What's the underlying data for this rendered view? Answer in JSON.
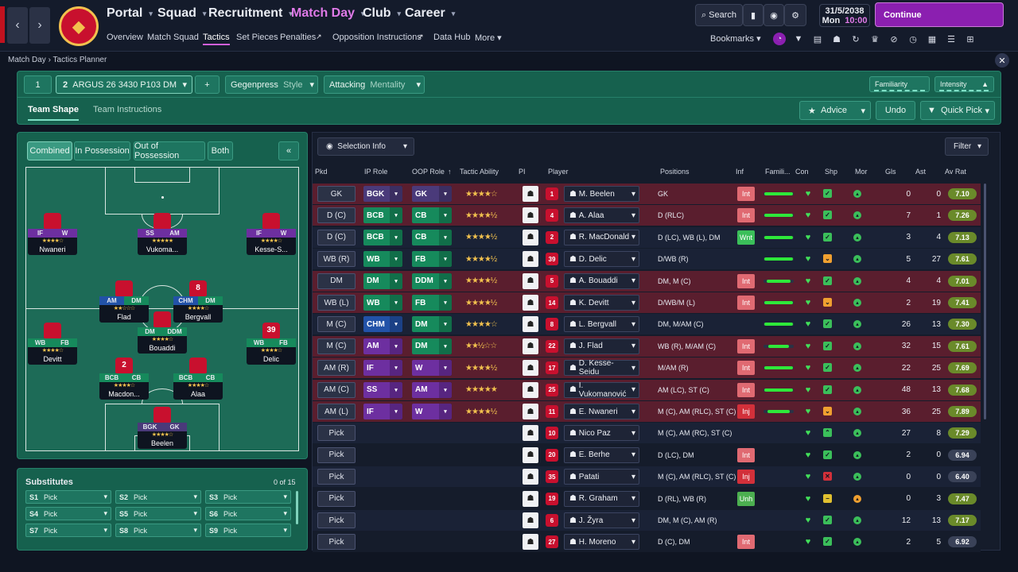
{
  "topbar": {
    "menus": [
      "Portal",
      "Squad",
      "Recruitment",
      "Match Day",
      "Club",
      "Career"
    ],
    "submenus": [
      "Overview",
      "Match Squad",
      "Tactics",
      "Set Pieces",
      "Penalties",
      "Opposition Instructions",
      "Data Hub",
      "More"
    ],
    "search": "Search",
    "date": "31/5/2038",
    "day": "Mon",
    "time": "10:00",
    "continue": "Continue",
    "bookmarks": "Bookmarks"
  },
  "breadcrumb": [
    "Match Day",
    "Tactics Planner"
  ],
  "tactics": {
    "slot1": "1",
    "slot2": "2",
    "tactic_name": "ARGUS 26 3430 P103 DM",
    "add": "+",
    "style_value": "Gegenpress",
    "style_label": "Style",
    "mentality_value": "Attacking",
    "mentality_label": "Mentality",
    "familiarity": "Familiarity",
    "intensity": "Intensity",
    "tabs": [
      "Team Shape",
      "Team Instructions"
    ],
    "advice": "Advice",
    "undo": "Undo",
    "quickpick": "Quick Pick"
  },
  "phases": [
    "Combined",
    "In Possession",
    "Out of Possession",
    "Both"
  ],
  "pitch_players": [
    {
      "r1": "IF",
      "r2": "W",
      "stars": "★★★★☆",
      "name": "Nwaneri",
      "num": ""
    },
    {
      "r1": "SS",
      "r2": "AM",
      "stars": "★★★★★",
      "name": "Vukoma...",
      "num": ""
    },
    {
      "r1": "IF",
      "r2": "W",
      "stars": "★★★★☆",
      "name": "Kesse-S...",
      "num": ""
    },
    {
      "r1": "AM",
      "r2": "DM",
      "stars": "★★☆☆☆",
      "name": "Flad",
      "num": ""
    },
    {
      "r1": "CHM",
      "r2": "DM",
      "stars": "★★★★☆",
      "name": "Bergvall",
      "num": "8"
    },
    {
      "r1": "WB",
      "r2": "FB",
      "stars": "★★★★☆",
      "name": "Devitt",
      "num": ""
    },
    {
      "r1": "DM",
      "r2": "DDM",
      "stars": "★★★★☆",
      "name": "Bouaddi",
      "num": ""
    },
    {
      "r1": "WB",
      "r2": "FB",
      "stars": "★★★★☆",
      "name": "Delic",
      "num": "39"
    },
    {
      "r1": "BCB",
      "r2": "CB",
      "stars": "★★★★☆",
      "name": "Macdon...",
      "num": "2"
    },
    {
      "r1": "BCB",
      "r2": "CB",
      "stars": "★★★★☆",
      "name": "Alaa",
      "num": ""
    },
    {
      "r1": "BGK",
      "r2": "GK",
      "stars": "★★★★☆",
      "name": "Beelen",
      "num": ""
    }
  ],
  "subs": {
    "title": "Substitutes",
    "count": "0 of 15",
    "slots": [
      [
        "S1",
        "Pick"
      ],
      [
        "S2",
        "Pick"
      ],
      [
        "S3",
        "Pick"
      ],
      [
        "S4",
        "Pick"
      ],
      [
        "S5",
        "Pick"
      ],
      [
        "S6",
        "Pick"
      ],
      [
        "S7",
        "Pick"
      ],
      [
        "S8",
        "Pick"
      ],
      [
        "S9",
        "Pick"
      ]
    ]
  },
  "table": {
    "selection_info": "Selection Info",
    "filter": "Filter",
    "headers": [
      "Pkd",
      "IP Role",
      "OOP Role",
      "Tactic Ability",
      "PI",
      "Player",
      "Positions",
      "Inf",
      "Famili...",
      "Con",
      "Shp",
      "Mor",
      "Gls",
      "Ast",
      "Av Rat"
    ],
    "rows": [
      {
        "pos": "GK",
        "ip": "BGK",
        "oop": "GK",
        "stars": "★★★★☆",
        "num": "1",
        "name": "M. Beelen",
        "positions": "GK",
        "inf": "Int",
        "fam": 0.95,
        "gls": "0",
        "ast": "0",
        "rat": "7.10"
      },
      {
        "pos": "D (C)",
        "ip": "BCB",
        "oop": "CB",
        "stars": "★★★★½",
        "num": "4",
        "name": "A. Alaa",
        "positions": "D (RLC)",
        "inf": "Int",
        "fam": 0.95,
        "gls": "7",
        "ast": "1",
        "rat": "7.26"
      },
      {
        "pos": "D (C)",
        "ip": "BCB",
        "oop": "CB",
        "stars": "★★★★½",
        "num": "2",
        "name": "R. MacDonald",
        "positions": "D (LC), WB (L), DM",
        "inf": "Wnt",
        "fam": 0.95,
        "gls": "3",
        "ast": "4",
        "rat": "7.13"
      },
      {
        "pos": "WB (R)",
        "ip": "WB",
        "oop": "FB",
        "stars": "★★★★½",
        "num": "39",
        "name": "D. Delic",
        "positions": "D/WB (R)",
        "inf": "",
        "fam": 0.95,
        "gls": "5",
        "ast": "27",
        "rat": "7.61"
      },
      {
        "pos": "DM",
        "ip": "DM",
        "oop": "DDM",
        "stars": "★★★★½",
        "num": "5",
        "name": "A. Bouaddi",
        "positions": "DM, M (C)",
        "inf": "Int",
        "fam": 0.8,
        "gls": "4",
        "ast": "4",
        "rat": "7.01"
      },
      {
        "pos": "WB (L)",
        "ip": "WB",
        "oop": "FB",
        "stars": "★★★★½",
        "num": "14",
        "name": "K. Devitt",
        "positions": "D/WB/M (L)",
        "inf": "Int",
        "fam": 0.95,
        "gls": "2",
        "ast": "19",
        "rat": "7.41"
      },
      {
        "pos": "M (C)",
        "ip": "CHM",
        "oop": "DM",
        "stars": "★★★★☆",
        "num": "8",
        "name": "L. Bergvall",
        "positions": "DM, M/AM (C)",
        "inf": "",
        "fam": 0.95,
        "gls": "26",
        "ast": "13",
        "rat": "7.30"
      },
      {
        "pos": "M (C)",
        "ip": "AM",
        "oop": "DM",
        "stars": "★★½☆☆",
        "num": "22",
        "name": "J. Flad",
        "positions": "WB (R), M/AM (C)",
        "inf": "Int",
        "fam": 0.7,
        "gls": "32",
        "ast": "15",
        "rat": "7.61"
      },
      {
        "pos": "AM (R)",
        "ip": "IF",
        "oop": "W",
        "stars": "★★★★½",
        "num": "17",
        "name": "D. Kesse-Seidu",
        "positions": "M/AM (R)",
        "inf": "Int",
        "fam": 0.95,
        "gls": "22",
        "ast": "25",
        "rat": "7.69"
      },
      {
        "pos": "AM (C)",
        "ip": "SS",
        "oop": "AM",
        "stars": "★★★★★",
        "num": "25",
        "name": "I. Vukomanović",
        "positions": "AM (LC), ST (C)",
        "inf": "Int",
        "fam": 0.95,
        "gls": "48",
        "ast": "13",
        "rat": "7.68"
      },
      {
        "pos": "AM (L)",
        "ip": "IF",
        "oop": "W",
        "stars": "★★★★½",
        "num": "11",
        "name": "E. Nwaneri",
        "positions": "M (C), AM (RLC), ST (C)",
        "inf": "Inj",
        "fam": 0.75,
        "gls": "36",
        "ast": "25",
        "rat": "7.89"
      },
      {
        "pos": "Pick",
        "ip": "",
        "oop": "",
        "stars": "",
        "num": "10",
        "name": "Nico Paz",
        "positions": "M (C), AM (RC), ST (C)",
        "inf": "",
        "fam": 0,
        "gls": "27",
        "ast": "8",
        "rat": "7.29"
      },
      {
        "pos": "Pick",
        "ip": "",
        "oop": "",
        "stars": "",
        "num": "20",
        "name": "E. Berhe",
        "positions": "D (LC), DM",
        "inf": "Int",
        "fam": 0,
        "gls": "2",
        "ast": "0",
        "rat": "6.94"
      },
      {
        "pos": "Pick",
        "ip": "",
        "oop": "",
        "stars": "",
        "num": "35",
        "name": "Patati",
        "positions": "M (C), AM (RLC), ST (C)",
        "inf": "Inj",
        "fam": 0,
        "gls": "0",
        "ast": "0",
        "rat": "6.40"
      },
      {
        "pos": "Pick",
        "ip": "",
        "oop": "",
        "stars": "",
        "num": "19",
        "name": "R. Graham",
        "positions": "D (RL), WB (R)",
        "inf": "Unh",
        "fam": 0,
        "gls": "0",
        "ast": "3",
        "rat": "7.47"
      },
      {
        "pos": "Pick",
        "ip": "",
        "oop": "",
        "stars": "",
        "num": "6",
        "name": "J. Žyra",
        "positions": "DM, M (C), AM (R)",
        "inf": "",
        "fam": 0,
        "gls": "12",
        "ast": "13",
        "rat": "7.17"
      },
      {
        "pos": "Pick",
        "ip": "",
        "oop": "",
        "stars": "",
        "num": "27",
        "name": "H. Moreno",
        "positions": "D (C), DM",
        "inf": "Int",
        "fam": 0,
        "gls": "2",
        "ast": "5",
        "rat": "6.92"
      }
    ]
  }
}
